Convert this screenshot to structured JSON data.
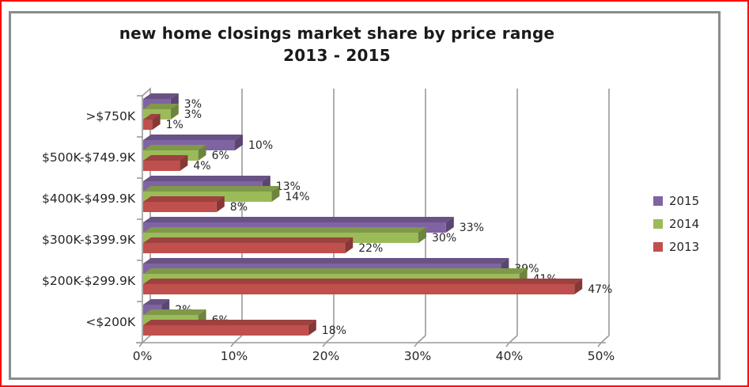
{
  "window": {
    "outer_border_color": "#fe0000",
    "chart_frame_color": "#8c8c8c",
    "background_color": "#ffffff"
  },
  "title": {
    "line1": "new home closings market share by price range",
    "line2": "2013 - 2015"
  },
  "chart_data": {
    "type": "bar",
    "orientation": "horizontal",
    "style": "3d-clustered",
    "categories": [
      ">$750K",
      "$500K-$749.9K",
      "$400K-$499.9K",
      "$300K-$399.9K",
      "$200K-$299.9K",
      "<$200K"
    ],
    "series": [
      {
        "name": "2015",
        "color": "#8064A2",
        "values": [
          3,
          10,
          13,
          33,
          39,
          2
        ]
      },
      {
        "name": "2014",
        "color": "#9BBB59",
        "values": [
          3,
          6,
          14,
          30,
          41,
          6
        ]
      },
      {
        "name": "2013",
        "color": "#C0504D",
        "values": [
          1,
          4,
          8,
          22,
          47,
          18
        ]
      }
    ],
    "xlim": [
      0,
      50
    ],
    "x_tick_labels": [
      "0%",
      "10%",
      "20%",
      "30%",
      "40%",
      "50%"
    ],
    "value_suffix": "%",
    "grid": true,
    "legend_position": "right",
    "axis_color": "#9a9a9a",
    "text_color": "#262626"
  }
}
